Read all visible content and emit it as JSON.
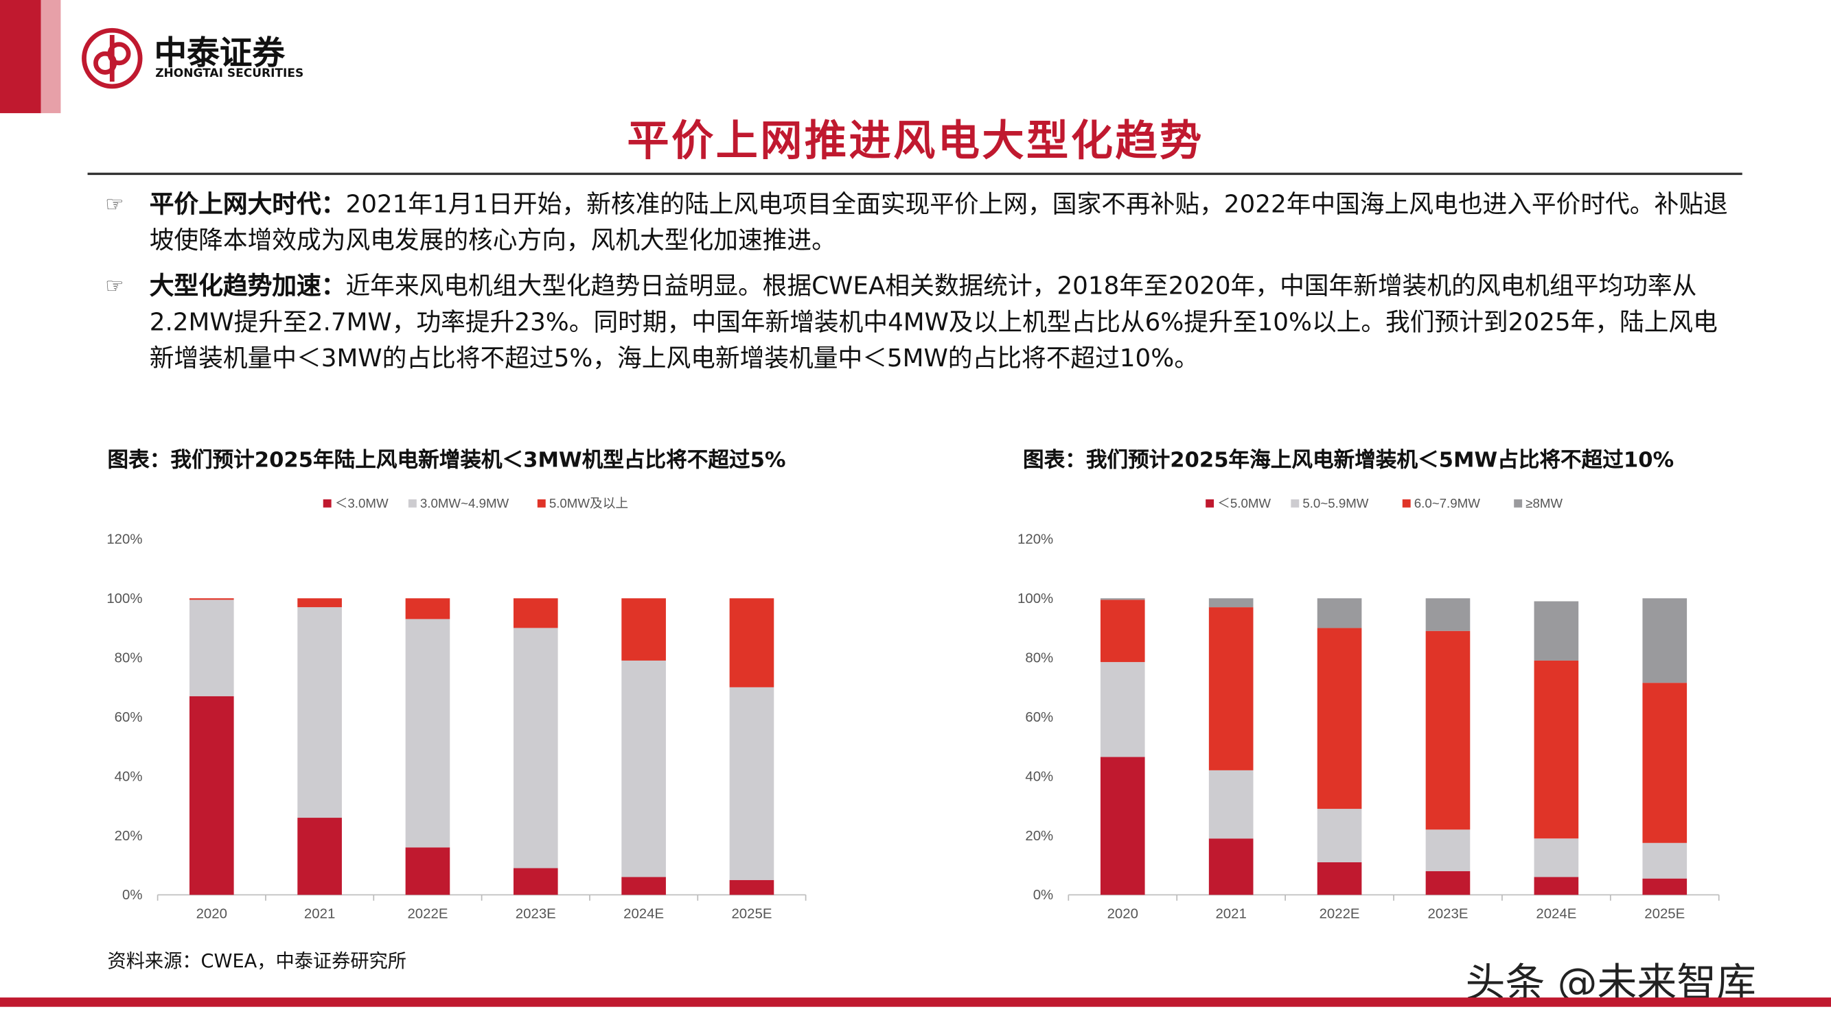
{
  "header": {
    "company": "中泰证券",
    "company_en": "ZHONGTAI SECURITIES",
    "title": "平价上网推进风电大型化趋势"
  },
  "bullets": [
    {
      "label": "平价上网大时代：",
      "text": "2021年1月1日开始，新核准的陆上风电项目全面实现平价上网，国家不再补贴，2022年中国海上风电也进入平价时代。补贴退坡使降本增效成为风电发展的核心方向，风机大型化加速推进。"
    },
    {
      "label": "大型化趋势加速：",
      "text": "近年来风电机组大型化趋势日益明显。根据CWEA相关数据统计，2018年至2020年，中国年新增装机的风电机组平均功率从2.2MW提升至2.7MW，功率提升23%。同时期，中国年新增装机中4MW及以上机型占比从6%提升至10%以上。我们预计到2025年，陆上风电新增装机量中＜3MW的占比将不超过5%，海上风电新增装机量中＜5MW的占比将不超过10%。"
    }
  ],
  "chart_data": [
    {
      "type": "stacked_bar",
      "title": "图表：我们预计2025年陆上风电新增装机＜3MW机型占比将不超过5%",
      "categories": [
        "2020",
        "2021",
        "2022E",
        "2023E",
        "2024E",
        "2025E"
      ],
      "series": [
        {
          "name": "＜3.0MW",
          "color": "#c0192f",
          "values": [
            67,
            26,
            16,
            9,
            6,
            5
          ]
        },
        {
          "name": "3.0MW~4.9MW",
          "color": "#cdccd0",
          "values": [
            32.5,
            71,
            77,
            81,
            73,
            65
          ]
        },
        {
          "name": "5.0MW及以上",
          "color": "#e03428",
          "values": [
            0.5,
            3,
            7,
            10,
            21,
            30
          ]
        }
      ],
      "ylim": [
        0,
        120
      ],
      "yticks": [
        {
          "value": 0,
          "label": "0%"
        },
        {
          "value": 20,
          "label": "20%"
        },
        {
          "value": 40,
          "label": "40%"
        },
        {
          "value": 60,
          "label": "60%"
        },
        {
          "value": 80,
          "label": "80%"
        },
        {
          "value": 100,
          "label": "100%"
        },
        {
          "value": 120,
          "label": "120%"
        }
      ],
      "grid": false,
      "legend": "top"
    },
    {
      "type": "stacked_bar",
      "title": "图表：我们预计2025年海上风电新增装机＜5MW占比将不超过10%",
      "categories": [
        "2020",
        "2021",
        "2022E",
        "2023E",
        "2024E",
        "2025E"
      ],
      "series": [
        {
          "name": "＜5.0MW",
          "color": "#c0192f",
          "values": [
            46.5,
            19,
            11,
            8,
            6,
            5.5
          ]
        },
        {
          "name": "5.0~5.9MW",
          "color": "#cdccd0",
          "values": [
            32,
            23,
            18,
            14,
            13,
            12
          ]
        },
        {
          "name": "6.0~7.9MW",
          "color": "#e03428",
          "values": [
            21,
            55,
            61,
            67,
            60,
            54
          ]
        },
        {
          "name": "≥8MW",
          "color": "#9a9a9d",
          "values": [
            0.5,
            3,
            10,
            11,
            20,
            28.5
          ]
        }
      ],
      "ylim": [
        0,
        120
      ],
      "yticks": [
        {
          "value": 0,
          "label": "0%"
        },
        {
          "value": 20,
          "label": "20%"
        },
        {
          "value": 40,
          "label": "40%"
        },
        {
          "value": 60,
          "label": "60%"
        },
        {
          "value": 80,
          "label": "80%"
        },
        {
          "value": 100,
          "label": "100%"
        },
        {
          "value": 120,
          "label": "120%"
        }
      ],
      "grid": false,
      "legend": "top"
    }
  ],
  "source": "资料来源：CWEA，中泰证券研究所",
  "watermark": "头条 @未来智库"
}
